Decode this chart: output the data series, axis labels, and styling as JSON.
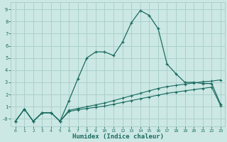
{
  "xlabel": "Humidex (Indice chaleur)",
  "background_color": "#cce8e4",
  "grid_color": "#aad0cc",
  "line_color": "#1a6b60",
  "xlim": [
    -0.5,
    23.5
  ],
  "ylim": [
    -0.6,
    9.6
  ],
  "xticks": [
    0,
    1,
    2,
    3,
    4,
    5,
    6,
    7,
    8,
    9,
    10,
    11,
    12,
    13,
    14,
    15,
    16,
    17,
    18,
    19,
    20,
    21,
    22,
    23
  ],
  "yticks": [
    0,
    1,
    2,
    3,
    4,
    5,
    6,
    7,
    8,
    9
  ],
  "ytick_labels": [
    "-0",
    "",
    "2",
    "",
    "4",
    "",
    "6",
    "",
    "8",
    ""
  ],
  "series": {
    "line1_x": [
      0,
      1,
      2,
      3,
      4,
      5,
      6,
      7,
      8,
      9,
      10,
      11,
      12,
      13,
      14,
      15,
      16,
      17,
      18,
      19,
      20,
      21,
      22,
      23
    ],
    "line1_y": [
      -0.2,
      0.8,
      -0.2,
      0.5,
      0.5,
      -0.2,
      1.5,
      3.3,
      5.0,
      5.5,
      5.5,
      5.2,
      6.3,
      7.9,
      8.9,
      8.5,
      7.4,
      4.5,
      3.7,
      3.0,
      3.0,
      2.9,
      2.9,
      1.2
    ],
    "line2_x": [
      0,
      1,
      2,
      3,
      4,
      5,
      6,
      7,
      8,
      9,
      10,
      11,
      12,
      13,
      14,
      15,
      16,
      17,
      18,
      19,
      20,
      21,
      22,
      23
    ],
    "line2_y": [
      -0.2,
      0.8,
      -0.2,
      0.5,
      0.5,
      -0.2,
      0.7,
      0.85,
      1.0,
      1.15,
      1.3,
      1.5,
      1.7,
      1.9,
      2.1,
      2.3,
      2.5,
      2.65,
      2.75,
      2.85,
      2.95,
      3.05,
      3.1,
      3.2
    ],
    "line3_x": [
      0,
      1,
      2,
      3,
      4,
      5,
      6,
      7,
      8,
      9,
      10,
      11,
      12,
      13,
      14,
      15,
      16,
      17,
      18,
      19,
      20,
      21,
      22,
      23
    ],
    "line3_y": [
      -0.2,
      0.8,
      -0.2,
      0.5,
      0.5,
      -0.2,
      0.6,
      0.75,
      0.85,
      0.95,
      1.05,
      1.2,
      1.35,
      1.5,
      1.65,
      1.8,
      1.95,
      2.1,
      2.2,
      2.3,
      2.4,
      2.5,
      2.6,
      1.1
    ]
  }
}
